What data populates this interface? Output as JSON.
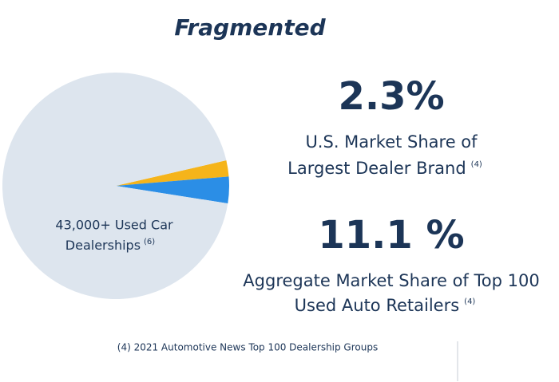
{
  "chart_data": {
    "type": "pie",
    "title": "Fragmented",
    "values": [
      2.3,
      3.8,
      93.9
    ],
    "colors": [
      "#f5b41a",
      "#2b8ee6",
      "#dde5ee"
    ],
    "slice_label": {
      "lines": [
        "43,000+ Used Car",
        "Dealerships"
      ],
      "note": "(6)"
    }
  },
  "stats": [
    {
      "value": "2.3%",
      "lines": [
        "U.S. Market Share of",
        "Largest Dealer Brand"
      ],
      "note": "(4)"
    },
    {
      "value": "11.1 %",
      "lines": [
        "Aggregate Market Share of Top 100",
        "Used Auto Retailers"
      ],
      "note": "(4)"
    }
  ],
  "footnote": "(4) 2021 Automotive News Top 100 Dealership Groups"
}
